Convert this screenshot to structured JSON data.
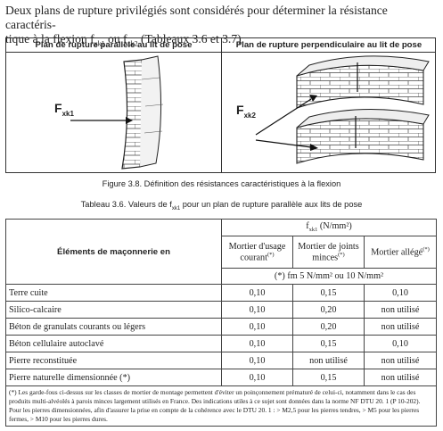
{
  "intro": {
    "line1": "Deux plans de rupture privilégiés sont considérés pour déterminer la résistance caractéris-",
    "line2_prefix": "tique à la flexion f",
    "sub1": "xk1",
    "mid": " ou f",
    "sub2": "xk2",
    "suffix": " (Tableaux 3.6 et 3.7)."
  },
  "figure": {
    "left_title": "Plan de rupture parallèle au lit de pose",
    "right_title": "Plan de rupture perpendiculaire au lit de pose",
    "left_force": "F",
    "left_force_sub": "xk1",
    "right_force": "F",
    "right_force_sub": "xk2",
    "caption": "Figure  3.8. Définition des résistances caractéristiques à la flexion"
  },
  "table": {
    "title_prefix": "Tableau 3.6. Valeurs de f",
    "title_sub": "xk1",
    "title_suffix": " pour un plan de rupture parallèle aux lits de pose",
    "col_elements": "Éléments de maçonnerie en",
    "group_header": "f",
    "group_header_sub": "xk1",
    "group_header_unit": " (N/mm²)",
    "col1": "Mortier d'usage courant",
    "col1_mark": "(*)",
    "col2": "Mortier de joints minces",
    "col2_mark": "(*)",
    "col3": "Mortier allégé",
    "col3_mark": "(*)",
    "fm_line": "(*) fm  5 N/mm²  ou  10 N/mm²",
    "rows": [
      {
        "label": "Terre cuite",
        "v1": "0,10",
        "v2": "0,15",
        "v3": "0,10"
      },
      {
        "label": "Silico-calcaire",
        "v1": "0,10",
        "v2": "0,20",
        "v3": "non utilisé"
      },
      {
        "label": "Béton de granulats courants ou légers",
        "v1": "0,10",
        "v2": "0,20",
        "v3": "non utilisé"
      },
      {
        "label": "Béton cellulaire autoclavé",
        "v1": "0,10",
        "v2": "0,15",
        "v3": "0,10"
      },
      {
        "label": "Pierre reconstituée",
        "v1": "0,10",
        "v2": "non utilisé",
        "v3": "non utilisé"
      },
      {
        "label": "Pierre naturelle dimensionnée (*)",
        "v1": "0,10",
        "v2": "0,15",
        "v3": "non utilisé"
      }
    ],
    "note": "(*) Les garde-fous ci-dessus sur les classes de mortier de montage permettent d'éviter un poinçonnement prématuré de celui-ci, notamment dans le cas des produits multi-alvéolés à parois minces largement utilisés en France. Des indications utiles à ce sujet sont données dans la norme NF DTU 20. 1 (P 10-202). Pour les pierres dimensionnées, afin d'assurer la prise en compte de la cohérence avec le DTU 20. 1 : > M2,5 pour les pierres tendres, > M5 pour les pierres fermes, > M10 pour les pierres dures."
  }
}
